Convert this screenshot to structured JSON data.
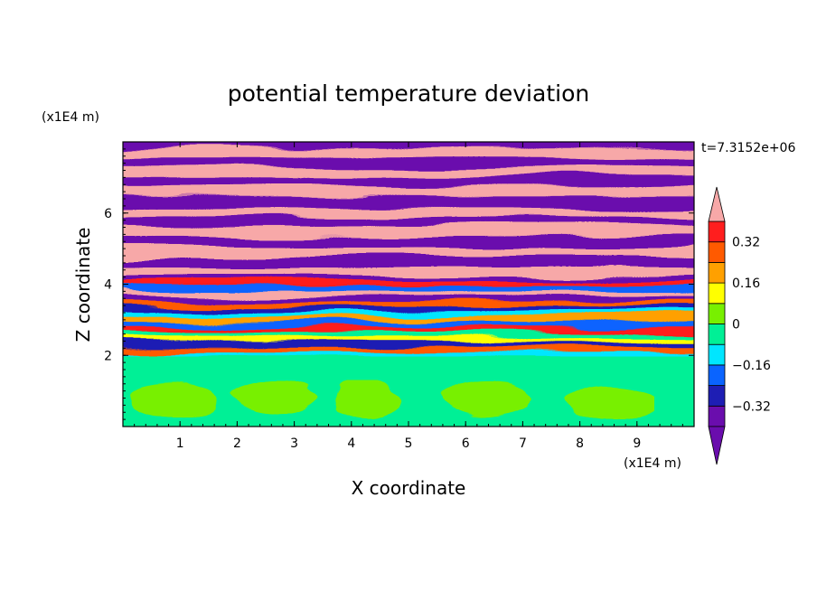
{
  "chart_data": {
    "type": "heatmap",
    "title": "potential temperature deviation",
    "xlabel": "X coordinate",
    "ylabel": "Z coordinate",
    "x_unit": "(x1E4 m)",
    "z_unit": "(x1E4 m)",
    "time_label": "t=7.3152e+06",
    "xlim": [
      0,
      10
    ],
    "zlim": [
      0,
      8
    ],
    "x_ticks": [
      "1",
      "2",
      "3",
      "4",
      "5",
      "6",
      "7",
      "8",
      "9"
    ],
    "z_ticks": [
      "2",
      "4",
      "6"
    ],
    "colorbar": {
      "levels": [
        -0.4,
        -0.32,
        -0.24,
        -0.16,
        -0.08,
        0,
        0.08,
        0.16,
        0.24,
        0.32,
        0.4
      ],
      "tick_labels": [
        "0.32",
        "0.16",
        "0",
        "−0.16",
        "−0.32"
      ],
      "colors": [
        "#6a0dad",
        "#1e1eb4",
        "#0a64ff",
        "#00e6ff",
        "#00f096",
        "#78f000",
        "#ffff00",
        "#ffa000",
        "#ff5a00",
        "#ff1e1e",
        "#f7a8a8"
      ],
      "extend": "both"
    },
    "description_regions": {
      "lower_region_z_max": 2.0,
      "lower_region_values": [
        0,
        -0.08
      ],
      "upper_layers_value_pattern": [
        "above 0.4",
        "below -0.4"
      ]
    }
  }
}
